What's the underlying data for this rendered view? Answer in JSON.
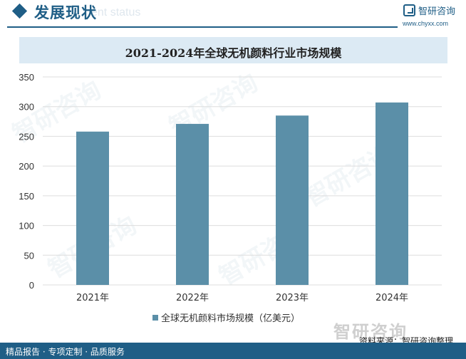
{
  "header": {
    "title": "发展现状",
    "ghost_text": "ent status",
    "logo_text": "智研咨询",
    "logo_url": "www.chyxx.com"
  },
  "legend": {
    "label": "全球无机颜料市场规模（亿美元）"
  },
  "source": {
    "logo_text": "智研咨询",
    "text": "资料来源：智研咨询整理"
  },
  "footer": {
    "text": "精品报告 · 专项定制 · 品质服务"
  },
  "watermark_text": "智研咨询",
  "colors": {
    "bar": "#5b8fa8",
    "brand": "#1f5e86",
    "grid": "#dddddd",
    "title_band": "#dceaf4"
  },
  "chart_data": {
    "type": "bar",
    "title": "2021-2024年全球无机颜料行业市场规模",
    "categories": [
      "2021年",
      "2022年",
      "2023年",
      "2024年"
    ],
    "series": [
      {
        "name": "全球无机颜料市场规模（亿美元）",
        "values": [
          258,
          271,
          285,
          307
        ]
      }
    ],
    "ylim": [
      0,
      350
    ],
    "yticks": [
      0,
      50,
      100,
      150,
      200,
      250,
      300,
      350
    ],
    "grid": true,
    "legend_position": "bottom"
  }
}
